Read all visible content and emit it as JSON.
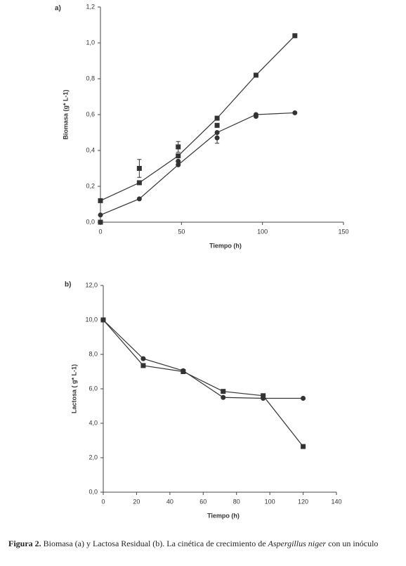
{
  "chart_data": [
    {
      "type": "line",
      "panel": "a)",
      "xlabel": "Tiempo (h)",
      "ylabel": "Biomasa (g* L-1)",
      "xlim": [
        0,
        150
      ],
      "xticks": [
        0,
        50,
        100,
        150
      ],
      "ylim": [
        0,
        1.2
      ],
      "yticks": [
        {
          "value": 0,
          "label": "0,0"
        },
        {
          "value": 0.2,
          "label": "0,2"
        },
        {
          "value": 0.4,
          "label": "0,4"
        },
        {
          "value": 0.6,
          "label": "0,6"
        },
        {
          "value": 0.8,
          "label": "0,8"
        },
        {
          "value": 1.0,
          "label": "1,0"
        },
        {
          "value": 1.2,
          "label": "1,2"
        }
      ],
      "series": [
        {
          "color": "#333333",
          "marker": "square",
          "line": true,
          "x": [
            0,
            24,
            48,
            72,
            96,
            120
          ],
          "values": [
            0.12,
            0.22,
            0.37,
            0.58,
            0.82,
            1.04
          ]
        },
        {
          "color": "#333333",
          "marker": "circle",
          "line": true,
          "x": [
            0,
            24,
            48,
            72,
            96,
            120
          ],
          "values": [
            0.04,
            0.13,
            0.32,
            0.5,
            0.6,
            0.61
          ]
        },
        {
          "color": "#333333",
          "marker": "square",
          "line": false,
          "x": [
            0,
            24,
            48,
            72
          ],
          "values": [
            0.0,
            0.3,
            0.42,
            0.54
          ],
          "errors": [
            null,
            0.05,
            0.03,
            null
          ]
        },
        {
          "color": "#333333",
          "marker": "circle",
          "line": false,
          "x": [
            0,
            48,
            72,
            96
          ],
          "values": [
            0.0,
            0.34,
            0.47,
            0.59
          ],
          "errors": [
            null,
            null,
            0.03,
            null
          ]
        }
      ]
    },
    {
      "type": "line",
      "panel": "b)",
      "xlabel": "Tiempo (h)",
      "ylabel": "Lactosa ( g* L-1)",
      "xlim": [
        0,
        140
      ],
      "xticks": [
        0,
        20,
        40,
        60,
        80,
        100,
        120,
        140
      ],
      "ylim": [
        0,
        12
      ],
      "yticks": [
        {
          "value": 0,
          "label": "0,0"
        },
        {
          "value": 2,
          "label": "2,0"
        },
        {
          "value": 4,
          "label": "4,0"
        },
        {
          "value": 6,
          "label": "6,0"
        },
        {
          "value": 8,
          "label": "8,0"
        },
        {
          "value": 10,
          "label": "10,0"
        },
        {
          "value": 12,
          "label": "12,0"
        }
      ],
      "series": [
        {
          "color": "#333333",
          "marker": "square",
          "line": true,
          "x": [
            0,
            24,
            48,
            72,
            96,
            120
          ],
          "values": [
            10,
            7.35,
            7.0,
            5.85,
            5.6,
            2.65
          ]
        },
        {
          "color": "#333333",
          "marker": "circle",
          "line": true,
          "x": [
            0,
            24,
            48,
            72,
            96,
            120
          ],
          "values": [
            10,
            7.75,
            7.05,
            5.5,
            5.45,
            5.45
          ]
        }
      ]
    }
  ],
  "caption": {
    "label": "Figura 2.",
    "text1": " Biomasa (a) y Lactosa Residual (b). La cinética de crecimiento de ",
    "species": "Aspergillus niger",
    "text2": " con un inóculo"
  }
}
